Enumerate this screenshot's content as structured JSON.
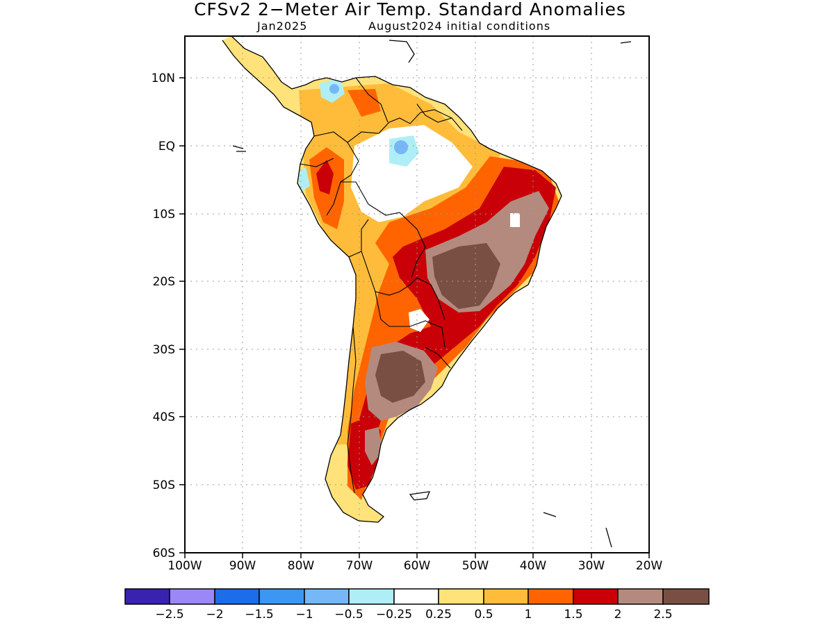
{
  "title": "CFSv2 2−Meter Air Temp. Standard Anomalies",
  "subtitle_left": "Jan2025",
  "subtitle_right": "August2024 initial conditions",
  "map": {
    "lon_range": [
      -100,
      -20
    ],
    "lat_range": [
      -60,
      16
    ],
    "lat_ticks": [
      "10N",
      "EQ",
      "10S",
      "20S",
      "30S",
      "40S",
      "50S",
      "60S"
    ],
    "lon_ticks": [
      "100W",
      "90W",
      "80W",
      "70W",
      "60W",
      "50W",
      "40W",
      "30W",
      "20W"
    ],
    "grid": "dotted"
  },
  "colorbar": {
    "colors": [
      "#3a22b0",
      "#9b87f5",
      "#1d6ce8",
      "#3c97f2",
      "#76b7f7",
      "#afeef7",
      "#ffffff",
      "#ffe27a",
      "#ffbc3a",
      "#ff6400",
      "#c90008",
      "#b48a7e",
      "#7a4f43"
    ],
    "labels": [
      "−2.5",
      "−2",
      "−1.5",
      "−1",
      "−0.5",
      "−0.25",
      "0.25",
      "0.5",
      "1",
      "1.5",
      "2",
      "2.5"
    ]
  }
}
